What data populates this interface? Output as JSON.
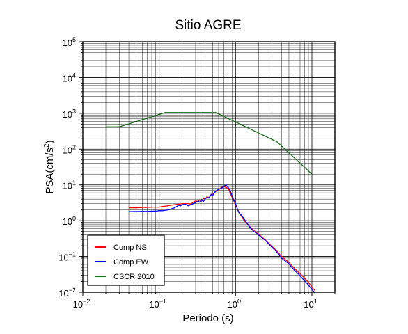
{
  "chart_data": {
    "type": "line",
    "title": "Sitio AGRE",
    "xlabel": "Periodo (s)",
    "ylabel_main": "PSA(cm/s",
    "ylabel_sup": "2",
    "ylabel_close": ")",
    "x_scale": "log",
    "y_scale": "log",
    "xlim": [
      0.01,
      20
    ],
    "ylim": [
      0.01,
      100000
    ],
    "grid": true,
    "legend_position": "bottom-left",
    "x_ticks": [
      {
        "value": 0.01,
        "base": "10",
        "exp": "−2"
      },
      {
        "value": 0.1,
        "base": "10",
        "exp": "−1"
      },
      {
        "value": 1,
        "base": "10",
        "exp": "0"
      },
      {
        "value": 10,
        "base": "10",
        "exp": "1"
      }
    ],
    "y_ticks": [
      {
        "value": 0.01,
        "base": "10",
        "exp": "−2"
      },
      {
        "value": 0.1,
        "base": "10",
        "exp": "−1"
      },
      {
        "value": 1,
        "base": "10",
        "exp": "0"
      },
      {
        "value": 10,
        "base": "10",
        "exp": "1"
      },
      {
        "value": 100,
        "base": "10",
        "exp": "2"
      },
      {
        "value": 1000,
        "base": "10",
        "exp": "3"
      },
      {
        "value": 10000,
        "base": "10",
        "exp": "4"
      },
      {
        "value": 100000,
        "base": "10",
        "exp": "5"
      }
    ],
    "series": [
      {
        "name": "Comp NS",
        "color": "#ff0000",
        "x": [
          0.04,
          0.05,
          0.06,
          0.07,
          0.08,
          0.09,
          0.1,
          0.11,
          0.12,
          0.13,
          0.14,
          0.15,
          0.16,
          0.17,
          0.18,
          0.19,
          0.2,
          0.22,
          0.24,
          0.26,
          0.28,
          0.3,
          0.32,
          0.34,
          0.36,
          0.38,
          0.4,
          0.42,
          0.45,
          0.48,
          0.5,
          0.55,
          0.6,
          0.65,
          0.7,
          0.75,
          0.8,
          0.85,
          0.9,
          0.95,
          1.0,
          1.1,
          1.2,
          1.3,
          1.5,
          1.7,
          2.0,
          2.5,
          3.0,
          3.5,
          4.0,
          5.0,
          6.0,
          7.0,
          8.0,
          9.0,
          10.0,
          11.0
        ],
        "values": [
          2.3,
          2.3,
          2.35,
          2.35,
          2.4,
          2.4,
          2.4,
          2.5,
          2.55,
          2.6,
          2.7,
          2.75,
          2.8,
          2.85,
          2.9,
          2.95,
          3.0,
          3.0,
          3.0,
          2.9,
          3.3,
          3.6,
          3.4,
          3.8,
          3.5,
          4.2,
          4.0,
          4.6,
          4.5,
          5.2,
          5.5,
          6.5,
          7.2,
          8.5,
          9.0,
          8.5,
          8.0,
          6.0,
          4.5,
          3.5,
          2.8,
          1.8,
          1.3,
          1.0,
          0.72,
          0.55,
          0.42,
          0.28,
          0.19,
          0.14,
          0.1,
          0.068,
          0.045,
          0.033,
          0.025,
          0.019,
          0.014,
          0.011
        ]
      },
      {
        "name": "Comp EW",
        "color": "#0000ff",
        "x": [
          0.04,
          0.05,
          0.06,
          0.07,
          0.08,
          0.09,
          0.1,
          0.11,
          0.12,
          0.13,
          0.14,
          0.15,
          0.16,
          0.17,
          0.18,
          0.19,
          0.2,
          0.22,
          0.24,
          0.26,
          0.28,
          0.3,
          0.32,
          0.34,
          0.36,
          0.38,
          0.4,
          0.42,
          0.45,
          0.48,
          0.5,
          0.55,
          0.6,
          0.65,
          0.7,
          0.75,
          0.8,
          0.85,
          0.9,
          0.95,
          1.0,
          1.1,
          1.2,
          1.3,
          1.5,
          1.7,
          2.0,
          2.5,
          3.0,
          3.5,
          4.0,
          5.0,
          6.0,
          7.0,
          8.0,
          9.0,
          10.0,
          11.0
        ],
        "values": [
          1.8,
          1.8,
          1.82,
          1.82,
          1.85,
          1.85,
          1.9,
          1.9,
          1.95,
          2.0,
          2.1,
          2.2,
          2.3,
          2.5,
          2.7,
          2.6,
          2.8,
          2.9,
          2.6,
          2.8,
          3.0,
          3.2,
          3.5,
          3.3,
          3.9,
          3.4,
          4.1,
          4.4,
          4.3,
          5.5,
          5.0,
          6.8,
          7.5,
          8.0,
          9.0,
          10.0,
          8.5,
          7.0,
          5.0,
          3.8,
          3.0,
          1.7,
          1.4,
          1.1,
          0.7,
          0.52,
          0.4,
          0.27,
          0.18,
          0.13,
          0.09,
          0.062,
          0.04,
          0.029,
          0.021,
          0.016,
          0.012,
          0.0095
        ]
      },
      {
        "name": "CSCR 2010",
        "color": "#1a6b1a",
        "x": [
          0.02,
          0.03,
          0.12,
          0.55,
          3.5,
          10.0
        ],
        "values": [
          420,
          420,
          1050,
          1050,
          160,
          20
        ]
      }
    ]
  }
}
